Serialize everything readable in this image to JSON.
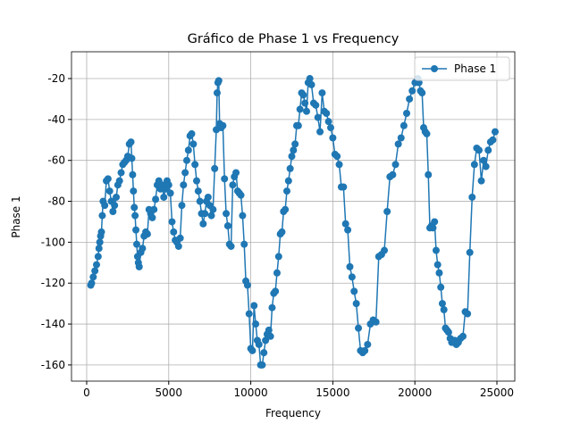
{
  "chart_data": {
    "type": "line",
    "title": "Gráfico de Phase 1 vs Frequency",
    "x_label": "Frequency",
    "y_label": "Phase 1",
    "xlim": [
      -925,
      26090
    ],
    "ylim": [
      -167.9,
      -6.9
    ],
    "xticks": [
      0,
      5000,
      10000,
      15000,
      20000,
      25000
    ],
    "yticks": [
      -160,
      -140,
      -120,
      -100,
      -80,
      -60,
      -40,
      -20
    ],
    "grid": true,
    "legend": "upper right",
    "series": [
      {
        "name": "Phase 1",
        "color": "#1f77b4",
        "x": [
          250,
          300,
          400,
          500,
          600,
          700,
          750,
          800,
          850,
          900,
          950,
          1000,
          1100,
          1200,
          1300,
          1400,
          1500,
          1600,
          1700,
          1800,
          1900,
          2000,
          2100,
          2200,
          2300,
          2400,
          2500,
          2600,
          2700,
          2750,
          2800,
          2850,
          2900,
          2950,
          3000,
          3050,
          3100,
          3150,
          3200,
          3300,
          3400,
          3500,
          3600,
          3700,
          3800,
          3900,
          4000,
          4100,
          4200,
          4300,
          4400,
          4500,
          4600,
          4700,
          4800,
          4900,
          5000,
          5100,
          5200,
          5300,
          5400,
          5500,
          5600,
          5700,
          5800,
          5900,
          6000,
          6100,
          6200,
          6300,
          6400,
          6500,
          6600,
          6700,
          6800,
          6900,
          7000,
          7100,
          7200,
          7300,
          7400,
          7500,
          7600,
          7700,
          7800,
          7900,
          7950,
          8000,
          8050,
          8100,
          8200,
          8300,
          8400,
          8500,
          8600,
          8700,
          8800,
          8900,
          9000,
          9100,
          9200,
          9300,
          9400,
          9500,
          9600,
          9700,
          9800,
          9900,
          10000,
          10100,
          10200,
          10300,
          10400,
          10500,
          10600,
          10700,
          10800,
          10900,
          11000,
          11100,
          11200,
          11300,
          11400,
          11500,
          11600,
          11700,
          11800,
          11900,
          12000,
          12100,
          12200,
          12300,
          12400,
          12500,
          12600,
          12700,
          12800,
          12900,
          13000,
          13100,
          13200,
          13300,
          13400,
          13500,
          13600,
          13700,
          13830,
          13960,
          14090,
          14220,
          14350,
          14480,
          14610,
          14740,
          14870,
          15000,
          15130,
          15260,
          15390,
          15520,
          15650,
          15780,
          15910,
          16040,
          16170,
          16300,
          16430,
          16560,
          16690,
          16820,
          16950,
          17120,
          17290,
          17460,
          17630,
          17800,
          17970,
          18140,
          18310,
          18480,
          18650,
          18820,
          18990,
          19160,
          19330,
          19500,
          19670,
          19840,
          20010,
          20180,
          20250,
          20345,
          20440,
          20535,
          20630,
          20725,
          20820,
          20915,
          21010,
          21105,
          21200,
          21295,
          21390,
          21485,
          21580,
          21675,
          21770,
          21865,
          21960,
          22055,
          22150,
          22245,
          22340,
          22435,
          22530,
          22650,
          22790,
          22930,
          23070,
          23210,
          23350,
          23490,
          23630,
          23770,
          23910,
          24050,
          24190,
          24330,
          24470,
          24610,
          24750,
          24890
        ],
        "values": [
          -121,
          -120,
          -117,
          -114,
          -111,
          -107,
          -103,
          -100,
          -97,
          -95,
          -87,
          -80,
          -82,
          -70,
          -69,
          -75,
          -80,
          -85,
          -82,
          -78,
          -72,
          -70,
          -66,
          -62,
          -61,
          -60,
          -58,
          -52,
          -51,
          -59,
          -67,
          -75,
          -83,
          -87,
          -94,
          -101,
          -107,
          -110,
          -112,
          -105,
          -103,
          -97,
          -95,
          -96,
          -84,
          -86,
          -88,
          -84,
          -79,
          -72,
          -70,
          -74,
          -72,
          -78,
          -74,
          -70,
          -72,
          -76,
          -90,
          -95,
          -99,
          -100,
          -102,
          -98,
          -82,
          -72,
          -66,
          -60,
          -55,
          -48,
          -47,
          -52,
          -62,
          -70,
          -75,
          -80,
          -86,
          -91,
          -86,
          -80,
          -78,
          -82,
          -87,
          -84,
          -64,
          -45,
          -27,
          -22,
          -21,
          -42,
          -44,
          -43,
          -69,
          -86,
          -92,
          -101,
          -102,
          -72,
          -68,
          -66,
          -75,
          -76,
          -77,
          -87,
          -101,
          -119,
          -121,
          -135,
          -152,
          -153,
          -131,
          -140,
          -148,
          -150,
          -160,
          -160,
          -154,
          -148,
          -145,
          -143,
          -146,
          -132,
          -125,
          -124,
          -115,
          -107,
          -96,
          -95,
          -85,
          -84,
          -75,
          -70,
          -64,
          -58,
          -55,
          -52,
          -43,
          -43,
          -35,
          -27,
          -28,
          -32,
          -36,
          -22,
          -20,
          -23,
          -32,
          -33,
          -39,
          -46,
          -27,
          -36,
          -37,
          -41,
          -44,
          -49,
          -57,
          -58,
          -62,
          -73,
          -73,
          -91,
          -94,
          -112,
          -117,
          -124,
          -130,
          -142,
          -153,
          -154,
          -153,
          -150,
          -140,
          -138,
          -139,
          -107,
          -106,
          -104,
          -85,
          -68,
          -67,
          -62,
          -52,
          -49,
          -43,
          -37,
          -30,
          -26,
          -22,
          -20,
          -22,
          -26,
          -27,
          -44,
          -46,
          -47,
          -67,
          -93,
          -92,
          -93,
          -90,
          -104,
          -111,
          -115,
          -122,
          -130,
          -133,
          -142,
          -143,
          -144,
          -147,
          -149,
          -148,
          -148,
          -150,
          -149,
          -147,
          -146,
          -134,
          -135,
          -105,
          -78,
          -62,
          -54,
          -55,
          -70,
          -60,
          -63,
          -55,
          -51,
          -50,
          -46
        ]
      }
    ]
  }
}
